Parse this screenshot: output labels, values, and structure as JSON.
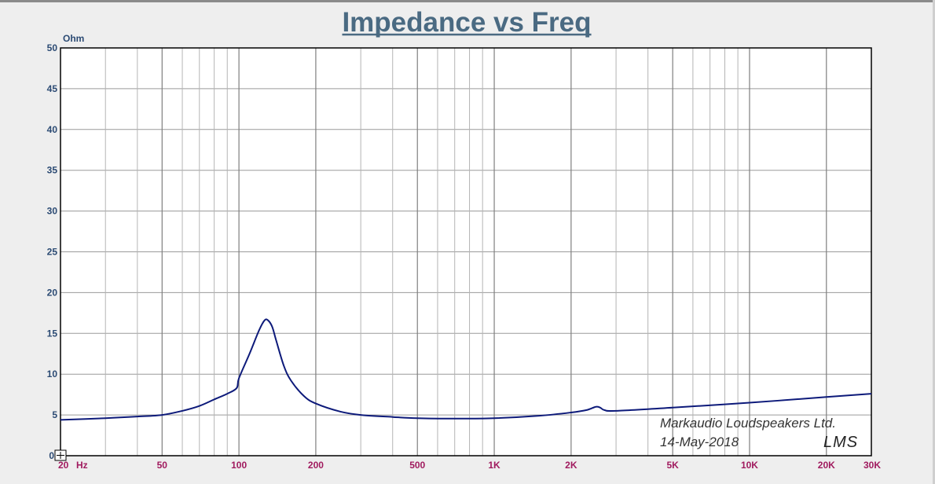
{
  "chart_data": {
    "type": "line",
    "title": "Impedance vs Freq",
    "ylabel": "Ohm",
    "xlabel": "Hz",
    "x_scale": "log",
    "xlim": [
      20,
      30000
    ],
    "ylim": [
      0,
      50
    ],
    "grid": true,
    "yticks": [
      5,
      10,
      15,
      20,
      25,
      30,
      35,
      40,
      45,
      50
    ],
    "xtick_labels": [
      {
        "value": 20,
        "label": "20"
      },
      {
        "value": 50,
        "label": "50"
      },
      {
        "value": 100,
        "label": "100"
      },
      {
        "value": 200,
        "label": "200"
      },
      {
        "value": 500,
        "label": "500"
      },
      {
        "value": 1000,
        "label": "1K"
      },
      {
        "value": 2000,
        "label": "2K"
      },
      {
        "value": 5000,
        "label": "5K"
      },
      {
        "value": 10000,
        "label": "10K"
      },
      {
        "value": 20000,
        "label": "20K"
      },
      {
        "value": 30000,
        "label": "30K"
      }
    ],
    "series": [
      {
        "color": "#0d1a7a",
        "x": [
          20,
          30,
          40,
          50,
          60,
          70,
          80,
          90,
          98,
          100,
          110,
          120,
          126,
          130,
          135,
          140,
          150,
          160,
          180,
          200,
          250,
          300,
          400,
          500,
          700,
          1000,
          1500,
          2000,
          2300,
          2500,
          2600,
          2700,
          3000,
          5000,
          10000,
          20000,
          30000
        ],
        "y": [
          4.4,
          4.6,
          4.8,
          5.0,
          5.5,
          6.1,
          6.9,
          7.6,
          8.3,
          9.5,
          12.5,
          15.4,
          16.6,
          16.6,
          15.8,
          14.1,
          11.0,
          9.2,
          7.3,
          6.4,
          5.4,
          5.0,
          4.75,
          4.6,
          4.55,
          4.6,
          4.9,
          5.3,
          5.6,
          6.0,
          5.9,
          5.6,
          5.5,
          5.9,
          6.5,
          7.2,
          7.6
        ]
      }
    ],
    "annotations": [
      "Markaudio Loudspeakers Ltd.",
      "14-May-2018"
    ],
    "logo_text": "LMS"
  }
}
